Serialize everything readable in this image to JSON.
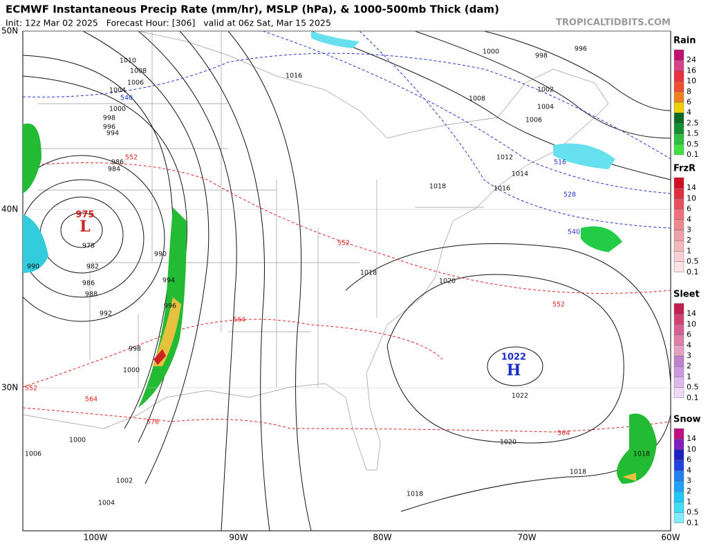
{
  "header": {
    "title": "ECMWF Instantaneous Precip Rate (mm/hr), MSLP (hPa), & 1000-500mb Thick (dam)",
    "subtitle": "Init: 12z Mar 02 2025   Forecast Hour: [306]   valid at 06z Sat, Mar 15 2025",
    "credit": "TROPICALTIDBITS.COM"
  },
  "axes": {
    "lat_labels": [
      "50N",
      "40N",
      "30N"
    ],
    "lon_labels": [
      "100W",
      "90W",
      "80W",
      "70W",
      "60W"
    ]
  },
  "legend": [
    {
      "title": "Rain",
      "labels": [
        24,
        16,
        10,
        8,
        6,
        4,
        2.5,
        1.5,
        0.5,
        0.1
      ]
    },
    {
      "title": "FrzR",
      "labels": [
        14,
        10,
        6,
        4,
        3,
        2,
        1,
        0.5,
        0.1
      ]
    },
    {
      "title": "Sleet",
      "labels": [
        14,
        10,
        6,
        4,
        3,
        2,
        1,
        0.5,
        0.1
      ]
    },
    {
      "title": "Snow",
      "labels": [
        14,
        10,
        6,
        4,
        3,
        2,
        1,
        0.5,
        0.1
      ]
    }
  ],
  "pressure_centers": [
    {
      "label": 975,
      "symbol": "L"
    },
    {
      "label": 1022,
      "symbol": "H"
    }
  ],
  "isobar_labels": [
    1010,
    1008,
    1006,
    1004,
    1000,
    998,
    996,
    994,
    986,
    984,
    978,
    982,
    986,
    988,
    992,
    990,
    998,
    1000,
    990,
    994,
    996,
    1000,
    1006,
    1002,
    1004,
    1016,
    1008,
    1000,
    998,
    996,
    1002,
    1004,
    1006,
    1012,
    1014,
    1016,
    1018,
    1018,
    1020,
    1022,
    1020,
    1018,
    1018,
    1018
  ],
  "thickness_labels": [
    540,
    516,
    528,
    540,
    552,
    552,
    552,
    564,
    552,
    564,
    576,
    564
  ]
}
